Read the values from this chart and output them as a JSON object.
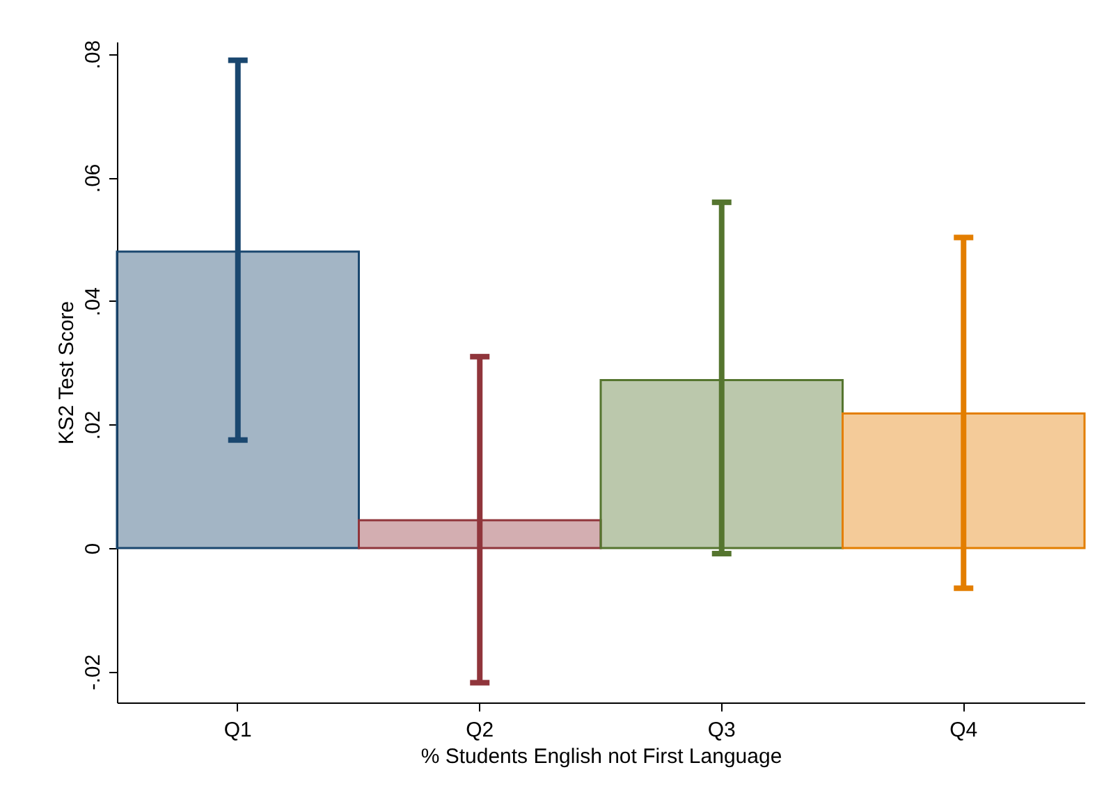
{
  "chart_data": {
    "type": "bar",
    "xlabel": "% Students English not First Language",
    "ylabel": "KS2 Test Score",
    "categories": [
      "Q1",
      "Q2",
      "Q3",
      "Q4"
    ],
    "values": [
      0.048,
      0.0045,
      0.0272,
      0.0218
    ],
    "colors": [
      "#1a476f",
      "#90353b",
      "#55752f",
      "#e37e00"
    ],
    "errors": [
      [
        0.0175,
        0.079
      ],
      [
        -0.0218,
        0.031
      ],
      [
        -0.0009,
        0.056
      ],
      [
        -0.0065,
        0.0503
      ]
    ],
    "ylim": [
      -0.025,
      0.082
    ],
    "yticks": [
      {
        "value": -0.02,
        "label": "-.02"
      },
      {
        "value": 0,
        "label": "0"
      },
      {
        "value": 0.02,
        "label": ".02"
      },
      {
        "value": 0.04,
        "label": ".04"
      },
      {
        "value": 0.06,
        "label": ".06"
      },
      {
        "value": 0.08,
        "label": ".08"
      }
    ],
    "grid": false,
    "legend": false
  }
}
